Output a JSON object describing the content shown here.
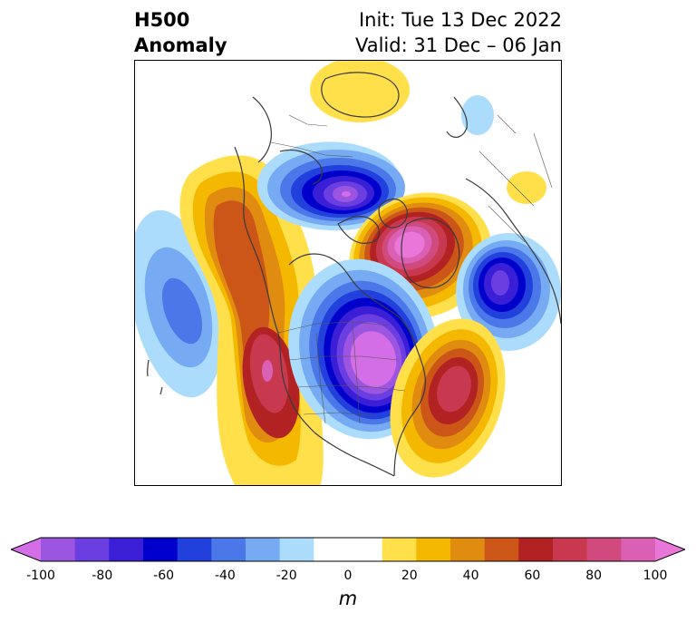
{
  "header": {
    "left_line1": "H500",
    "left_line2": "Anomaly",
    "right_line1": "Init: Tue 13 Dec 2022",
    "right_line2": "Valid: 31 Dec – 06 Jan"
  },
  "colorbar": {
    "unit": "m",
    "ticks": [
      "-100",
      "-80",
      "-60",
      "-40",
      "-20",
      "0",
      "20",
      "40",
      "60",
      "80",
      "100"
    ],
    "colors": [
      "#9b55e0",
      "#6a3ee0",
      "#3a1fd6",
      "#0000cd",
      "#2240dc",
      "#4a78e8",
      "#76abf4",
      "#acdcfc",
      "#ffffff",
      "#ffffff",
      "#ffe04b",
      "#f5b800",
      "#e08c10",
      "#cc5518",
      "#b22222",
      "#c8394f",
      "#d04a7e",
      "#da60b4"
    ],
    "extend_low_color": "#d46ee6",
    "extend_high_color": "#e877d9"
  }
}
